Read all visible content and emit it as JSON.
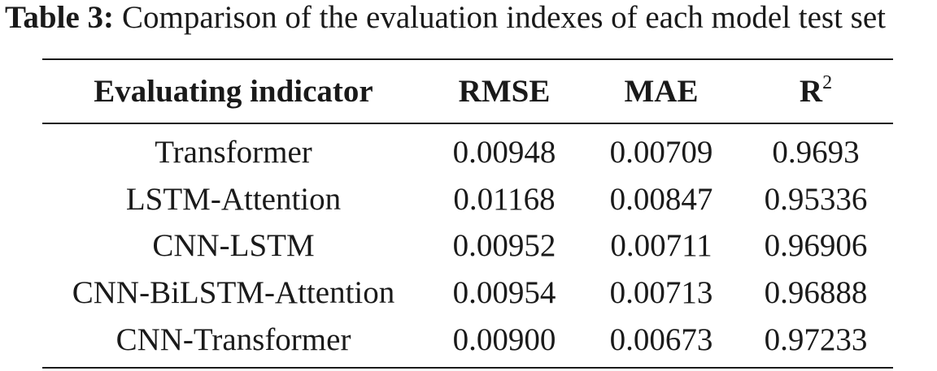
{
  "caption": {
    "label": "Table 3:",
    "text": "Comparison of the evaluation indexes of each model test set"
  },
  "table": {
    "headers": {
      "indicator": "Evaluating indicator",
      "rmse": "RMSE",
      "mae": "MAE",
      "r2_base": "R",
      "r2_sup": "2"
    },
    "rows": [
      {
        "model": "Transformer",
        "rmse": "0.00948",
        "mae": "0.00709",
        "r2": "0.9693"
      },
      {
        "model": "LSTM-Attention",
        "rmse": "0.01168",
        "mae": "0.00847",
        "r2": "0.95336"
      },
      {
        "model": "CNN-LSTM",
        "rmse": "0.00952",
        "mae": "0.00711",
        "r2": "0.96906"
      },
      {
        "model": "CNN-BiLSTM-Attention",
        "rmse": "0.00954",
        "mae": "0.00713",
        "r2": "0.96888"
      },
      {
        "model": "CNN-Transformer",
        "rmse": "0.00900",
        "mae": "0.00673",
        "r2": "0.97233"
      }
    ]
  }
}
